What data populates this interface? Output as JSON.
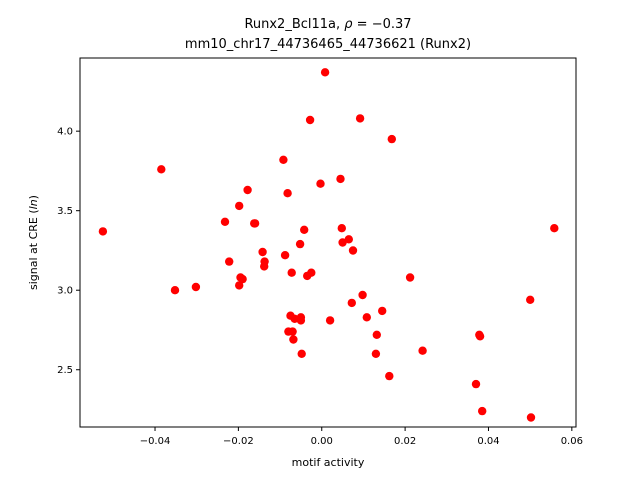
{
  "chart_data": {
    "type": "scatter",
    "title_line1_prefix": "Runx2_Bcl11a, ",
    "title_line1_rho": "ρ",
    "title_line1_suffix": " = −0.37",
    "title_line2": "mm10_chr17_44736465_44736621 (Runx2)",
    "xlabel": "motif activity",
    "ylabel_prefix": "signal at CRE (",
    "ylabel_italic": "ln",
    "ylabel_suffix": ")",
    "xlim": [
      -0.058,
      0.061
    ],
    "ylim": [
      2.14,
      4.46
    ],
    "xticks": [
      -0.04,
      -0.02,
      0.0,
      0.02,
      0.04,
      0.06
    ],
    "xtick_labels": [
      "−0.04",
      "−0.02",
      "0.00",
      "0.02",
      "0.04",
      "0.06"
    ],
    "yticks": [
      2.5,
      3.0,
      3.5,
      4.0
    ],
    "ytick_labels": [
      "2.5",
      "3.0",
      "3.5",
      "4.0"
    ],
    "grid": false,
    "legend": false,
    "marker_color": "#ff0000",
    "points": [
      {
        "x": -0.0525,
        "y": 3.37
      },
      {
        "x": -0.0385,
        "y": 3.76
      },
      {
        "x": -0.0352,
        "y": 3.0
      },
      {
        "x": -0.0302,
        "y": 3.02
      },
      {
        "x": -0.0232,
        "y": 3.43
      },
      {
        "x": -0.0222,
        "y": 3.18
      },
      {
        "x": -0.0198,
        "y": 3.53
      },
      {
        "x": -0.0198,
        "y": 3.03
      },
      {
        "x": -0.0195,
        "y": 3.08
      },
      {
        "x": -0.019,
        "y": 3.07
      },
      {
        "x": -0.0178,
        "y": 3.63
      },
      {
        "x": -0.0162,
        "y": 3.42
      },
      {
        "x": -0.016,
        "y": 3.42
      },
      {
        "x": -0.0142,
        "y": 3.24
      },
      {
        "x": -0.0138,
        "y": 3.15
      },
      {
        "x": -0.0137,
        "y": 3.18
      },
      {
        "x": -0.0092,
        "y": 3.82
      },
      {
        "x": -0.0088,
        "y": 3.22
      },
      {
        "x": -0.0082,
        "y": 3.61
      },
      {
        "x": -0.008,
        "y": 2.74
      },
      {
        "x": -0.0075,
        "y": 2.84
      },
      {
        "x": -0.0072,
        "y": 3.11
      },
      {
        "x": -0.007,
        "y": 2.74
      },
      {
        "x": -0.0068,
        "y": 2.69
      },
      {
        "x": -0.0065,
        "y": 2.82
      },
      {
        "x": -0.0052,
        "y": 3.29
      },
      {
        "x": -0.005,
        "y": 2.83
      },
      {
        "x": -0.005,
        "y": 2.81
      },
      {
        "x": -0.0048,
        "y": 2.6
      },
      {
        "x": -0.0042,
        "y": 3.38
      },
      {
        "x": -0.0035,
        "y": 3.09
      },
      {
        "x": -0.0028,
        "y": 4.07
      },
      {
        "x": -0.0025,
        "y": 3.11
      },
      {
        "x": -0.0003,
        "y": 3.67
      },
      {
        "x": 0.0008,
        "y": 4.37
      },
      {
        "x": 0.002,
        "y": 2.81
      },
      {
        "x": 0.0045,
        "y": 3.7
      },
      {
        "x": 0.0048,
        "y": 3.39
      },
      {
        "x": 0.005,
        "y": 3.3
      },
      {
        "x": 0.0065,
        "y": 3.32
      },
      {
        "x": 0.0072,
        "y": 2.92
      },
      {
        "x": 0.0075,
        "y": 3.25
      },
      {
        "x": 0.0092,
        "y": 4.08
      },
      {
        "x": 0.0098,
        "y": 2.97
      },
      {
        "x": 0.0108,
        "y": 2.83
      },
      {
        "x": 0.013,
        "y": 2.6
      },
      {
        "x": 0.0132,
        "y": 2.72
      },
      {
        "x": 0.0145,
        "y": 2.87
      },
      {
        "x": 0.0162,
        "y": 2.46
      },
      {
        "x": 0.0168,
        "y": 3.95
      },
      {
        "x": 0.0212,
        "y": 3.08
      },
      {
        "x": 0.0242,
        "y": 2.62
      },
      {
        "x": 0.037,
        "y": 2.41
      },
      {
        "x": 0.0378,
        "y": 2.72
      },
      {
        "x": 0.038,
        "y": 2.71
      },
      {
        "x": 0.0385,
        "y": 2.24
      },
      {
        "x": 0.05,
        "y": 2.94
      },
      {
        "x": 0.0502,
        "y": 2.2
      },
      {
        "x": 0.0558,
        "y": 3.39
      }
    ]
  }
}
